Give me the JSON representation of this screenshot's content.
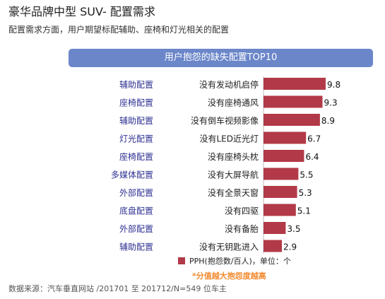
{
  "title": "豪华品牌中型 SUV- 配置需求",
  "subtitle": "配置需求方面，用户期望标配辅助、座椅和灯光相关的配置",
  "chart_data": {
    "type": "bar",
    "orientation": "horizontal",
    "title": "用户抱怨的缺失配置TOP10",
    "categories": [
      "没有发动机启停",
      "没有座椅通风",
      "没有倒车视频影像",
      "没有LED近光灯",
      "没有座椅头枕",
      "没有大屏导航",
      "没有全景天窗",
      "没有四驱",
      "没有备胎",
      "没有无钥匙进入"
    ],
    "groups": [
      "辅助配置",
      "座椅配置",
      "辅助配置",
      "灯光配置",
      "座椅配置",
      "多媒体配置",
      "外部配置",
      "底盘配置",
      "外部配置",
      "辅助配置"
    ],
    "values": [
      9.8,
      9.3,
      8.9,
      6.7,
      6.4,
      5.5,
      5.3,
      5.1,
      3.5,
      2.9
    ],
    "bar_color": "#b23a48",
    "group_label_color": "#2e3192",
    "legend": "PPH(抱怨数/百人)，单位：个",
    "note": "*分值越大抱怨度越高"
  },
  "source": "数据来源：汽车垂直网站 /201701 至 201712/N=549 位车主"
}
